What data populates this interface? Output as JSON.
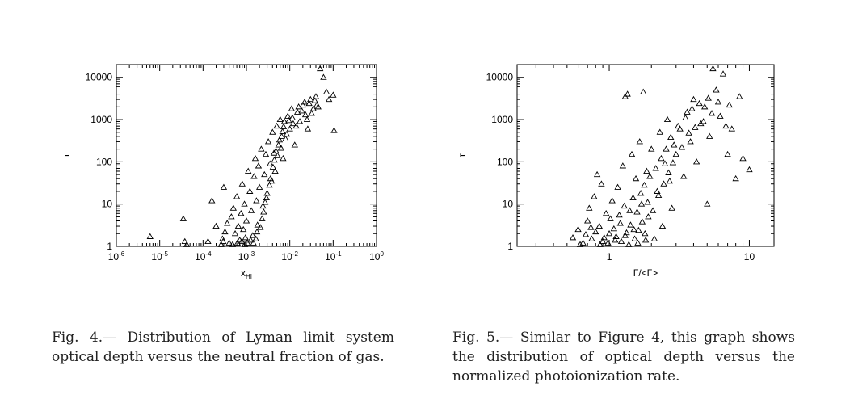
{
  "figures": [
    {
      "caption_label": "Fig. 4.—",
      "caption_text": " Distribution of Lyman limit system optical depth versus the neutral fraction of gas.",
      "chart_data": {
        "type": "scatter",
        "xscale": "log",
        "yscale": "log",
        "xlim": [
          1e-06,
          1
        ],
        "ylim": [
          1,
          20000
        ],
        "xlabel": "x",
        "xlabel_sub": "HI",
        "ylabel": "τ",
        "xtick_labels": [
          {
            "base": "10",
            "exp": "-6",
            "value": 1e-06
          },
          {
            "base": "10",
            "exp": "-5",
            "value": 1e-05
          },
          {
            "base": "10",
            "exp": "-4",
            "value": 0.0001
          },
          {
            "base": "10",
            "exp": "-3",
            "value": 0.001
          },
          {
            "base": "10",
            "exp": "-2",
            "value": 0.01
          },
          {
            "base": "10",
            "exp": "-1",
            "value": 0.1
          },
          {
            "base": "10",
            "exp": "0",
            "value": 1
          }
        ],
        "ytick_labels": [
          {
            "text": "1",
            "value": 1
          },
          {
            "text": "10",
            "value": 10
          },
          {
            "text": "100",
            "value": 100
          },
          {
            "text": "1000",
            "value": 1000
          },
          {
            "text": "10000",
            "value": 10000
          }
        ],
        "marker": "open-triangle",
        "points": [
          [
            6e-06,
            1.7
          ],
          [
            3.5e-05,
            4.5
          ],
          [
            3.8e-05,
            1.3
          ],
          [
            4.2e-05,
            1.1
          ],
          [
            0.00016,
            12
          ],
          [
            0.0003,
            25
          ],
          [
            0.00028,
            1.5
          ],
          [
            0.00032,
            2.2
          ],
          [
            0.00036,
            3.5
          ],
          [
            0.0004,
            1.2
          ],
          [
            0.00045,
            5
          ],
          [
            0.0005,
            8
          ],
          [
            0.00055,
            2
          ],
          [
            0.0006,
            15
          ],
          [
            0.00065,
            3
          ],
          [
            0.0007,
            1.4
          ],
          [
            0.00075,
            6
          ],
          [
            0.0008,
            30
          ],
          [
            0.00085,
            2.5
          ],
          [
            0.0009,
            10
          ],
          [
            0.00095,
            1.6
          ],
          [
            0.001,
            4
          ],
          [
            0.0011,
            60
          ],
          [
            0.0012,
            20
          ],
          [
            0.0013,
            7
          ],
          [
            0.0014,
            1.8
          ],
          [
            0.0015,
            45
          ],
          [
            0.0016,
            120
          ],
          [
            0.0017,
            12
          ],
          [
            0.0018,
            3.2
          ],
          [
            0.0019,
            80
          ],
          [
            0.002,
            25
          ],
          [
            0.0022,
            200
          ],
          [
            0.0024,
            9
          ],
          [
            0.0026,
            50
          ],
          [
            0.0028,
            150
          ],
          [
            0.003,
            18
          ],
          [
            0.0032,
            300
          ],
          [
            0.0035,
            90
          ],
          [
            0.0038,
            35
          ],
          [
            0.004,
            500
          ],
          [
            0.0043,
            160
          ],
          [
            0.0046,
            60
          ],
          [
            0.005,
            700
          ],
          [
            0.0055,
            250
          ],
          [
            0.006,
            1000
          ],
          [
            0.0065,
            400
          ],
          [
            0.007,
            120
          ],
          [
            0.0075,
            900
          ],
          [
            0.008,
            350
          ],
          [
            0.009,
            1200
          ],
          [
            0.01,
            600
          ],
          [
            0.011,
            1800
          ],
          [
            0.012,
            800
          ],
          [
            0.013,
            250
          ],
          [
            0.015,
            1500
          ],
          [
            0.017,
            900
          ],
          [
            0.02,
            2200
          ],
          [
            0.023,
            1300
          ],
          [
            0.026,
            600
          ],
          [
            0.03,
            3000
          ],
          [
            0.035,
            1800
          ],
          [
            0.04,
            3500
          ],
          [
            0.045,
            2000
          ],
          [
            0.05,
            16000
          ],
          [
            0.06,
            10000
          ],
          [
            0.07,
            4500
          ],
          [
            0.08,
            3000
          ],
          [
            0.1,
            3800
          ],
          [
            0.105,
            550
          ],
          [
            0.00026,
            1.1
          ],
          [
            0.00029,
            1.3
          ],
          [
            0.00013,
            1.3
          ],
          [
            0.0002,
            3
          ],
          [
            0.00048,
            1.1
          ],
          [
            0.00062,
            1.2
          ],
          [
            0.00078,
            1.3
          ],
          [
            0.00092,
            1.1
          ],
          [
            0.00105,
            1.2
          ],
          [
            0.00125,
            1.4
          ],
          [
            0.00145,
            1.2
          ],
          [
            0.00165,
            1.5
          ],
          [
            0.00175,
            2.2
          ],
          [
            0.0021,
            2.8
          ],
          [
            0.0023,
            4.5
          ],
          [
            0.0025,
            6.5
          ],
          [
            0.0027,
            11
          ],
          [
            0.0029,
            14
          ],
          [
            0.0034,
            28
          ],
          [
            0.0036,
            40
          ],
          [
            0.0041,
            75
          ],
          [
            0.0044,
            110
          ],
          [
            0.0048,
            180
          ],
          [
            0.0052,
            140
          ],
          [
            0.0058,
            330
          ],
          [
            0.0063,
            210
          ],
          [
            0.0068,
            520
          ],
          [
            0.0072,
            680
          ],
          [
            0.0085,
            450
          ],
          [
            0.0095,
            950
          ],
          [
            0.0115,
            1100
          ],
          [
            0.014,
            700
          ],
          [
            0.016,
            2000
          ],
          [
            0.019,
            1600
          ],
          [
            0.022,
            2600
          ],
          [
            0.025,
            1000
          ],
          [
            0.028,
            2400
          ],
          [
            0.032,
            1400
          ],
          [
            0.038,
            2800
          ],
          [
            0.042,
            2200
          ]
        ]
      }
    },
    {
      "caption_label": "Fig. 5.—",
      "caption_text": " Similar to Figure 4, this graph shows the distribution of optical depth versus the normalized photoionization rate.",
      "chart_data": {
        "type": "scatter",
        "xscale": "log",
        "yscale": "log",
        "xlim": [
          0.22,
          15
        ],
        "ylim": [
          1,
          20000
        ],
        "xlabel": "Γ/<Γ>",
        "ylabel": "τ",
        "xtick_labels": [
          {
            "text": "1",
            "value": 1
          },
          {
            "text": "10",
            "value": 10
          }
        ],
        "ytick_labels": [
          {
            "text": "1",
            "value": 1
          },
          {
            "text": "10",
            "value": 10
          },
          {
            "text": "100",
            "value": 100
          },
          {
            "text": "1000",
            "value": 1000
          },
          {
            "text": "10000",
            "value": 10000
          }
        ],
        "marker": "open-triangle",
        "points": [
          [
            0.55,
            1.6
          ],
          [
            0.6,
            2.5
          ],
          [
            0.65,
            1.2
          ],
          [
            0.7,
            4
          ],
          [
            0.72,
            8
          ],
          [
            0.75,
            1.5
          ],
          [
            0.78,
            15
          ],
          [
            0.8,
            2.2
          ],
          [
            0.82,
            50
          ],
          [
            0.85,
            3
          ],
          [
            0.88,
            30
          ],
          [
            0.9,
            1.3
          ],
          [
            0.95,
            6
          ],
          [
            1.0,
            2
          ],
          [
            1.05,
            12
          ],
          [
            1.1,
            1.4
          ],
          [
            1.15,
            25
          ],
          [
            1.2,
            3.5
          ],
          [
            1.25,
            80
          ],
          [
            1.3,
            1.8
          ],
          [
            1.3,
            3500
          ],
          [
            1.35,
            4000
          ],
          [
            1.4,
            7
          ],
          [
            1.45,
            150
          ],
          [
            1.5,
            2.5
          ],
          [
            1.55,
            40
          ],
          [
            1.6,
            1.2
          ],
          [
            1.65,
            300
          ],
          [
            1.7,
            10
          ],
          [
            1.75,
            4500
          ],
          [
            1.8,
            2
          ],
          [
            1.85,
            60
          ],
          [
            1.9,
            5
          ],
          [
            2.0,
            200
          ],
          [
            2.1,
            1.5
          ],
          [
            2.2,
            20
          ],
          [
            2.3,
            500
          ],
          [
            2.4,
            3
          ],
          [
            2.5,
            90
          ],
          [
            2.6,
            1000
          ],
          [
            2.7,
            35
          ],
          [
            2.8,
            8
          ],
          [
            2.9,
            250
          ],
          [
            3.0,
            150
          ],
          [
            3.2,
            600
          ],
          [
            3.4,
            45
          ],
          [
            3.6,
            1500
          ],
          [
            3.8,
            300
          ],
          [
            4.0,
            3000
          ],
          [
            4.2,
            100
          ],
          [
            4.5,
            800
          ],
          [
            4.8,
            2000
          ],
          [
            5.0,
            10
          ],
          [
            5.2,
            400
          ],
          [
            5.5,
            16000
          ],
          [
            5.8,
            5000
          ],
          [
            6.2,
            1200
          ],
          [
            6.5,
            12000
          ],
          [
            7.0,
            150
          ],
          [
            7.5,
            600
          ],
          [
            8.0,
            40
          ],
          [
            8.5,
            3500
          ],
          [
            10.0,
            65
          ],
          [
            0.62,
            1.1
          ],
          [
            0.68,
            1.9
          ],
          [
            0.74,
            2.8
          ],
          [
            0.86,
            1.1
          ],
          [
            0.92,
            1.6
          ],
          [
            0.98,
            1.2
          ],
          [
            1.02,
            4.5
          ],
          [
            1.08,
            2.6
          ],
          [
            1.12,
            1.7
          ],
          [
            1.18,
            5.5
          ],
          [
            1.22,
            1.3
          ],
          [
            1.28,
            9
          ],
          [
            1.33,
            2.1
          ],
          [
            1.38,
            1.1
          ],
          [
            1.42,
            3.2
          ],
          [
            1.48,
            14
          ],
          [
            1.52,
            1.5
          ],
          [
            1.58,
            6.5
          ],
          [
            1.62,
            2.4
          ],
          [
            1.68,
            18
          ],
          [
            1.72,
            3.8
          ],
          [
            1.78,
            28
          ],
          [
            1.82,
            1.4
          ],
          [
            1.88,
            11
          ],
          [
            1.95,
            45
          ],
          [
            2.05,
            7
          ],
          [
            2.15,
            70
          ],
          [
            2.25,
            16
          ],
          [
            2.35,
            120
          ],
          [
            2.45,
            30
          ],
          [
            2.55,
            200
          ],
          [
            2.65,
            55
          ],
          [
            2.75,
            380
          ],
          [
            2.85,
            95
          ],
          [
            3.1,
            700
          ],
          [
            3.3,
            220
          ],
          [
            3.5,
            1100
          ],
          [
            3.7,
            480
          ],
          [
            3.9,
            1800
          ],
          [
            4.1,
            650
          ],
          [
            4.4,
            2400
          ],
          [
            4.7,
            900
          ],
          [
            5.1,
            3200
          ],
          [
            5.4,
            1400
          ],
          [
            6.0,
            2600
          ],
          [
            6.8,
            700
          ],
          [
            7.2,
            2200
          ],
          [
            9.0,
            120
          ]
        ]
      }
    }
  ]
}
